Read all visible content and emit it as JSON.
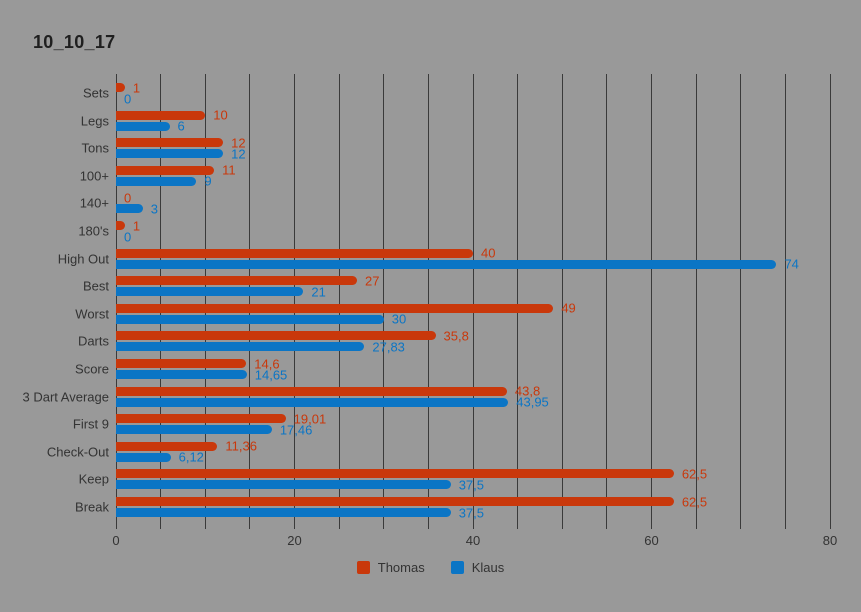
{
  "title": "10_10_17",
  "colors": {
    "background": "#999999",
    "grid": "#3a3a3a",
    "text": "#333333",
    "title": "#1f1f1f",
    "thomas": "#c9380b",
    "klaus": "#0b75c5"
  },
  "legend": {
    "items": [
      {
        "label": "Thomas"
      },
      {
        "label": "Klaus"
      }
    ]
  },
  "chart_data": {
    "type": "bar",
    "orientation": "horizontal",
    "title": "10_10_17",
    "categories": [
      "Sets",
      "Legs",
      "Tons",
      "100+",
      "140+",
      "180's",
      "High Out",
      "Best",
      "Worst",
      "Darts",
      "Score",
      "3 Dart Average",
      "First 9",
      "Check-Out",
      "Keep",
      "Break"
    ],
    "series": [
      {
        "name": "Thomas",
        "color": "#c9380b",
        "values": [
          1,
          10,
          12,
          11,
          0,
          1,
          40,
          27,
          49,
          35.8,
          14.6,
          43.8,
          19.01,
          11.36,
          62.5,
          62.5
        ],
        "value_labels": [
          "1",
          "10",
          "12",
          "11",
          "0",
          "1",
          "40",
          "27",
          "49",
          "35,8",
          "14,6",
          "43,8",
          "19,01",
          "11,36",
          "62,5",
          "62,5"
        ]
      },
      {
        "name": "Klaus",
        "color": "#0b75c5",
        "values": [
          0,
          6,
          12,
          9,
          3,
          0,
          74,
          21,
          30,
          27.83,
          14.65,
          43.95,
          17.46,
          6.12,
          37.5,
          37.5
        ],
        "value_labels": [
          "0",
          "6",
          "12",
          "9",
          "3",
          "0",
          "74",
          "21",
          "30",
          "27,83",
          "14,65",
          "43,95",
          "17,46",
          "6,12",
          "37,5",
          "37,5"
        ]
      }
    ],
    "xlim": [
      0,
      80
    ],
    "x_tick_values": [
      0,
      20,
      40,
      60,
      80
    ],
    "x_tick_labels": [
      "0",
      "20",
      "40",
      "60",
      "80"
    ],
    "gridline_step": 5,
    "grid": "vertical-only",
    "value_labels_shown": true,
    "legend_position": "bottom-center",
    "decimal_separator": ","
  }
}
